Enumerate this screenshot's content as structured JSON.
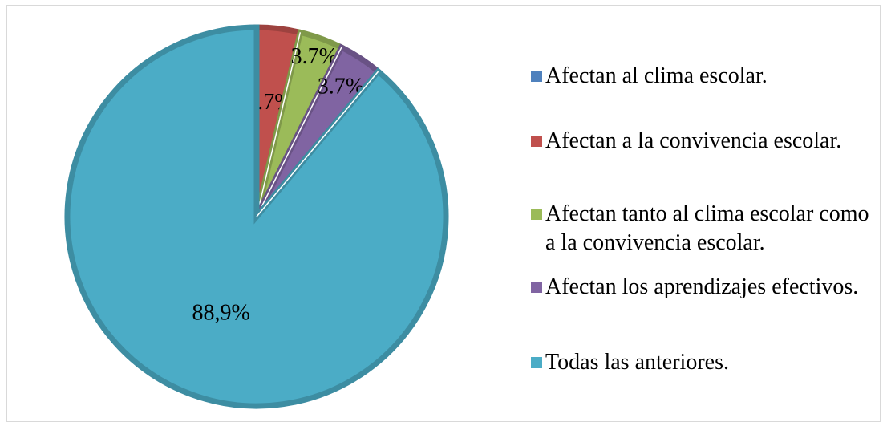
{
  "chart_data": {
    "type": "pie",
    "categories": [
      "Afectan al clima escolar.",
      "Afectan a la convivencia escolar.",
      "Afectan tanto al clima escolar como a la convivencia escolar.",
      "Afectan los aprendizajes efectivos.",
      "Todas las anteriores."
    ],
    "values": [
      0,
      3.7,
      3.7,
      3.7,
      88.9
    ],
    "value_labels": [
      null,
      "3.7%",
      "3.7%",
      "3.7%",
      "88,9%"
    ],
    "colors": [
      "#4f81bd",
      "#c0504d",
      "#9bbb59",
      "#8064a2",
      "#4bacc6"
    ],
    "legend": "right"
  }
}
